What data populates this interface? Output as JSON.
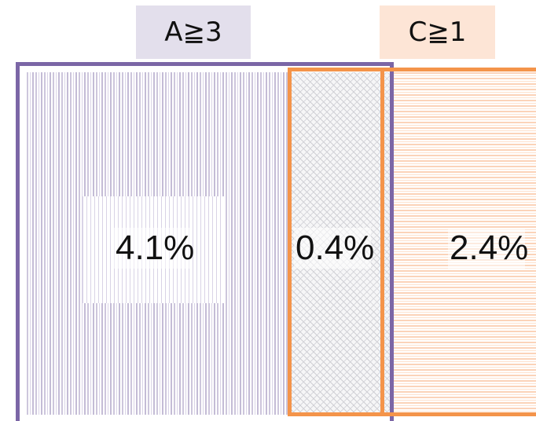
{
  "labels": {
    "set_a": "A≧3",
    "set_c": "C≧1"
  },
  "regions": {
    "a_only": "4.1%",
    "a_and_c": "0.4%",
    "c_only": "2.4%"
  },
  "colors": {
    "set_a_outline": "#7b66a6",
    "set_a_fill": "#cdc6dc",
    "set_c_outline": "#f4944a",
    "set_c_fill": "#fbd3b9",
    "label_a_bg": "#e3dfec",
    "label_c_bg": "#fde5d6"
  }
}
